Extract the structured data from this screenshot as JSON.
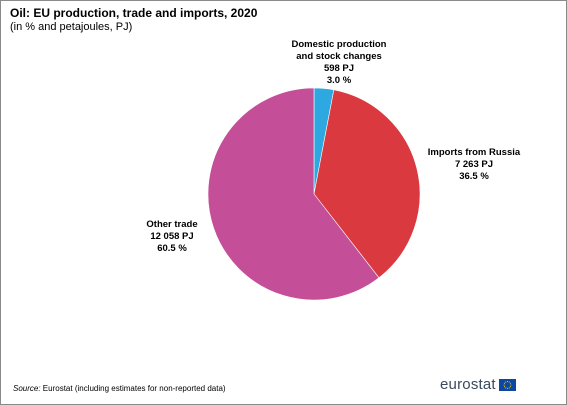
{
  "header": {
    "title": "Oil: EU production, trade and imports, 2020",
    "subtitle": "(in % and petajoules, PJ)"
  },
  "chart_data": {
    "type": "pie",
    "title": "Oil: EU production, trade and imports, 2020",
    "subtitle": "(in % and petajoules, PJ)",
    "start_angle_deg": 0,
    "direction": "clockwise",
    "slices": [
      {
        "label_lines": [
          "Domestic production",
          "and stock changes",
          "598 PJ",
          "3.0 %"
        ],
        "value_pj": 598,
        "percent": 3.0,
        "color": "#2ea8e0"
      },
      {
        "label_lines": [
          "Imports from Russia",
          "7 263 PJ",
          "36.5 %"
        ],
        "value_pj": 7263,
        "percent": 36.5,
        "color": "#d9393f"
      },
      {
        "label_lines": [
          "Other trade",
          "12 058 PJ",
          "60.5 %"
        ],
        "value_pj": 12058,
        "percent": 60.5,
        "color": "#c44e97"
      }
    ]
  },
  "footer": {
    "source_label": "Source:",
    "source_text": " Eurostat (including estimates for non-reported data)",
    "logo_text": "eurostat"
  },
  "colors": {
    "eu_flag_blue": "#0e47a1",
    "eu_flag_stars": "#ffd400"
  }
}
